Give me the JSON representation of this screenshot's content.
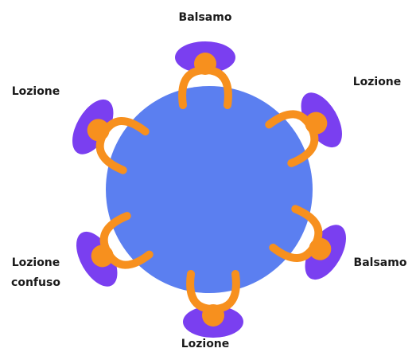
{
  "nodes": [
    {
      "lines": [
        "Balsamo"
      ]
    },
    {
      "lines": [
        "Lozione"
      ]
    },
    {
      "lines": [
        "Balsamo"
      ]
    },
    {
      "lines": [
        "Lozione"
      ]
    },
    {
      "lines": [
        "Lozione",
        "confuso"
      ]
    },
    {
      "lines": [
        "Lozione"
      ]
    }
  ]
}
